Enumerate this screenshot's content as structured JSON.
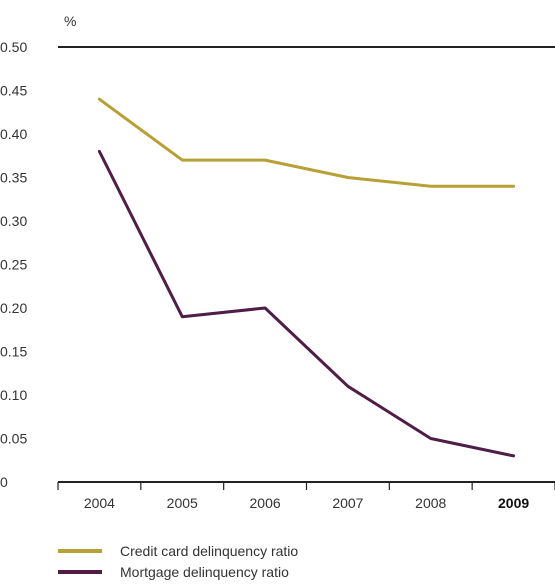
{
  "chart_data": {
    "type": "line",
    "title": "",
    "xlabel": "",
    "ylabel": "%",
    "categories": [
      "2004",
      "2005",
      "2006",
      "2007",
      "2008",
      "2009"
    ],
    "highlighted_category": "2009",
    "ylim": [
      0,
      0.5
    ],
    "yticks": [
      "0",
      "0.05",
      "0.10",
      "0.15",
      "0.20",
      "0.25",
      "0.30",
      "0.35",
      "0.40",
      "0.45",
      "0.50"
    ],
    "grid": false,
    "legend_position": "bottom-left",
    "series": [
      {
        "name": "Credit card delinquency ratio",
        "color": "#b8a036",
        "values": [
          0.44,
          0.37,
          0.37,
          0.35,
          0.34,
          0.34
        ]
      },
      {
        "name": "Mortgage delinquency ratio",
        "color": "#4f1d47",
        "values": [
          0.38,
          0.19,
          0.2,
          0.11,
          0.05,
          0.03
        ]
      }
    ]
  }
}
